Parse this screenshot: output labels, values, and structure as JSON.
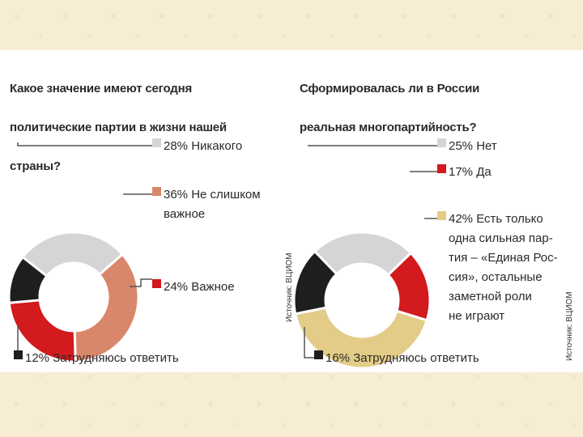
{
  "chart_data": [
    {
      "type": "pie",
      "donut": true,
      "title": "Какое значение имеют сегодня политические партии в жизни нашей страны?",
      "title_lines": [
        "Какое значение имеют сегодня",
        "политические партии в жизни нашей",
        "страны?"
      ],
      "slices": [
        {
          "label": "Никакого",
          "value": 28,
          "color": "#d5d5d5",
          "text_lines": [
            "28% Никакого"
          ]
        },
        {
          "label": "Не слишком важное",
          "value": 36,
          "color": "#d9876a",
          "text_lines": [
            "36% Не слишком",
            "важное"
          ]
        },
        {
          "label": "Важное",
          "value": 24,
          "color": "#d21a1f",
          "text_lines": [
            "24% Важное"
          ]
        },
        {
          "label": "Затрудняюсь ответить",
          "value": 12,
          "color": "#1e1e1e",
          "text_lines": [
            "12% Затрудняюсь ответить"
          ]
        }
      ],
      "source": "Источник: ВЦИОМ"
    },
    {
      "type": "pie",
      "donut": true,
      "title": "Сформировалась ли в России реальная многопартийность?",
      "title_lines": [
        "Сформировалась ли в России",
        "реальная многопартийность?"
      ],
      "slices": [
        {
          "label": "Нет",
          "value": 25,
          "color": "#d5d5d5",
          "text_lines": [
            "25% Нет"
          ]
        },
        {
          "label": "Да",
          "value": 17,
          "color": "#d21a1f",
          "text_lines": [
            "17% Да"
          ]
        },
        {
          "label": "Есть только одна сильная партия – «Единая Россия», остальные заметной роли не играют",
          "value": 42,
          "color": "#e3cc87",
          "text_lines": [
            "42% Есть только",
            "одна сильная пар-",
            "тия – «Единая Рос-",
            "сия», остальные",
            "заметной роли",
            "не играют"
          ]
        },
        {
          "label": "Затрудняюсь ответить",
          "value": 16,
          "color": "#1e1e1e",
          "text_lines": [
            "16% Затрудняюсь ответить"
          ]
        }
      ],
      "source": "Источник: ВЦИОМ"
    }
  ]
}
